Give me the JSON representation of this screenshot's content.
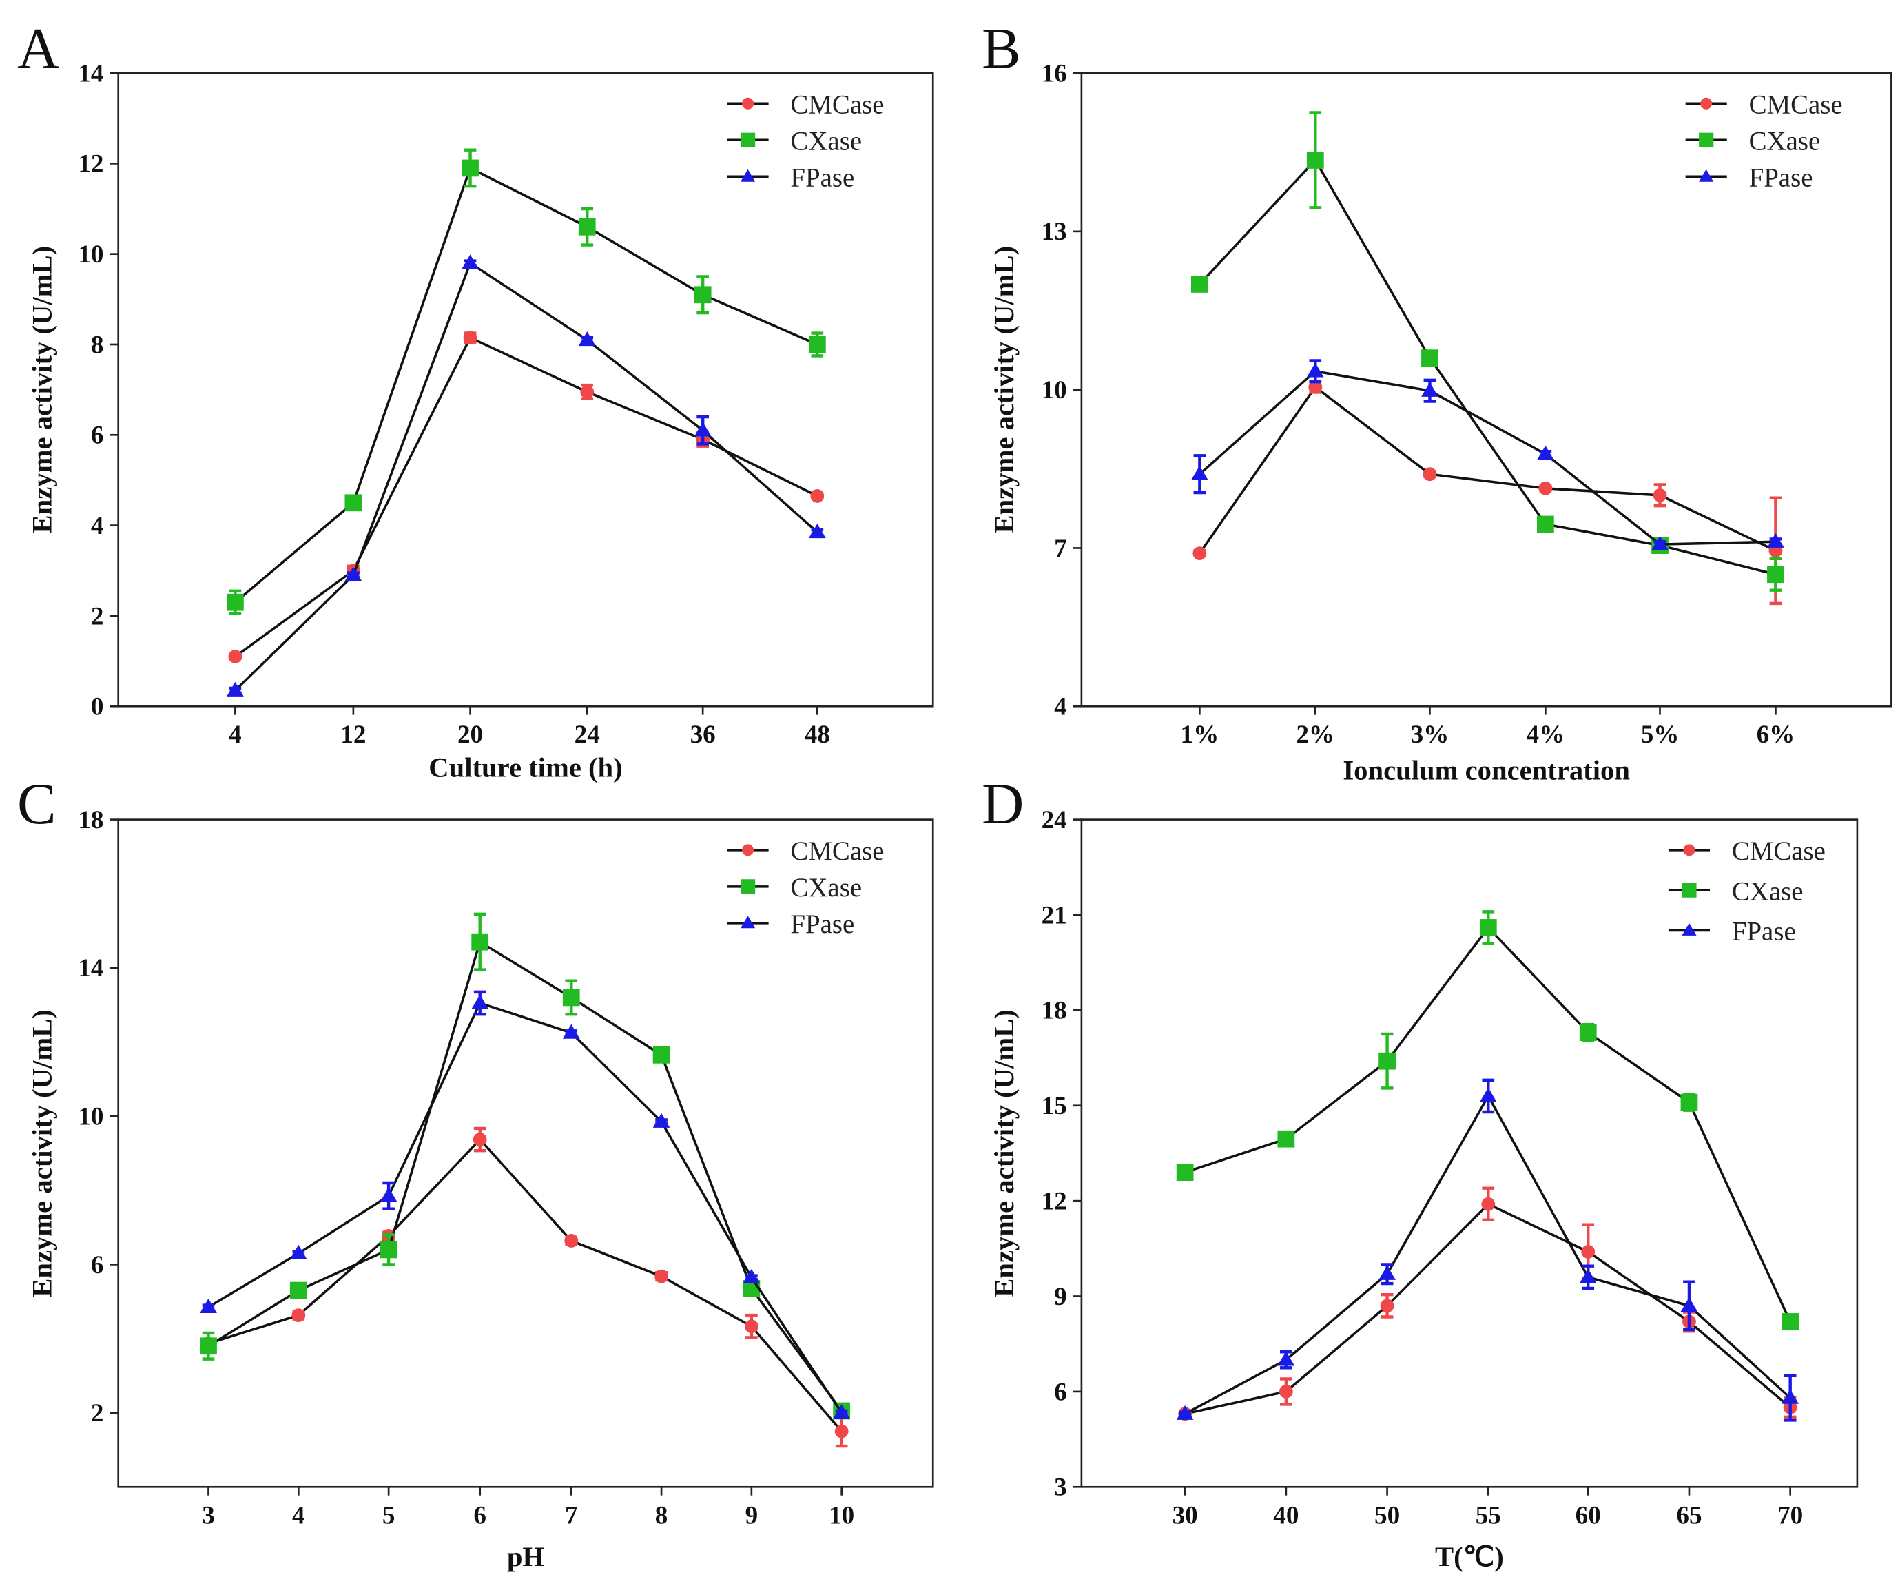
{
  "series_colors": {
    "CMCase": "#f04848",
    "CXase": "#22bb22",
    "FPase": "#1a1ae6"
  },
  "chart_data": [
    {
      "type": "line",
      "panel_label": "A",
      "xlabel": "Culture time (h)",
      "ylabel": "Enzyme activity (U/mL)",
      "categories": [
        "4",
        "12",
        "20",
        "24",
        "36",
        "48"
      ],
      "ylim": [
        0,
        14
      ],
      "yticks": [
        0,
        2,
        4,
        6,
        8,
        10,
        12,
        14
      ],
      "legend": "top-right",
      "series": [
        {
          "name": "CMCase",
          "marker": "circle",
          "values": [
            1.1,
            3.0,
            8.15,
            6.95,
            5.9,
            4.65
          ],
          "errors": [
            0.05,
            0.1,
            0.1,
            0.15,
            0.15,
            0.05
          ]
        },
        {
          "name": "CXase",
          "marker": "square",
          "values": [
            2.3,
            4.5,
            11.9,
            10.6,
            9.1,
            8.0
          ],
          "errors": [
            0.25,
            0.1,
            0.4,
            0.4,
            0.4,
            0.25
          ]
        },
        {
          "name": "FPase",
          "marker": "triangle",
          "values": [
            0.35,
            2.9,
            9.8,
            8.1,
            6.1,
            3.85
          ],
          "errors": [
            0.05,
            0.05,
            0.05,
            0.05,
            0.3,
            0.05
          ]
        }
      ]
    },
    {
      "type": "line",
      "panel_label": "B",
      "xlabel": "Ionculum concentration",
      "ylabel": "Enzyme activity (U/mL)",
      "categories": [
        "1%",
        "2%",
        "3%",
        "4%",
        "5%",
        "6%"
      ],
      "ylim": [
        4,
        16
      ],
      "yticks": [
        4,
        7,
        10,
        13,
        16
      ],
      "legend": "top-right",
      "series": [
        {
          "name": "CMCase",
          "marker": "circle",
          "values": [
            6.9,
            10.05,
            8.4,
            8.13,
            8.0,
            6.95
          ],
          "errors": [
            0.05,
            0.1,
            0.05,
            0.05,
            0.2,
            1.0
          ]
        },
        {
          "name": "CXase",
          "marker": "square",
          "values": [
            12.0,
            14.35,
            10.6,
            7.45,
            7.05,
            6.5
          ],
          "errors": [
            0.1,
            0.9,
            0.1,
            0.05,
            0.1,
            0.3
          ]
        },
        {
          "name": "FPase",
          "marker": "triangle",
          "values": [
            8.4,
            10.35,
            9.98,
            8.78,
            7.07,
            7.12
          ],
          "errors": [
            0.35,
            0.2,
            0.2,
            0.05,
            0.05,
            0.05
          ]
        }
      ]
    },
    {
      "type": "line",
      "panel_label": "C",
      "xlabel": "pH",
      "ylabel": "Enzyme activity (U/mL)",
      "categories": [
        "3",
        "4",
        "5",
        "6",
        "7",
        "8",
        "9",
        "10"
      ],
      "ylim": [
        0,
        18
      ],
      "yticks": [
        2,
        6,
        10,
        14,
        18
      ],
      "legend": "top-right",
      "series": [
        {
          "name": "CMCase",
          "marker": "circle",
          "values": [
            3.87,
            4.63,
            6.77,
            9.37,
            6.64,
            5.68,
            4.33,
            1.5
          ],
          "errors": [
            0.05,
            0.1,
            0.1,
            0.3,
            0.1,
            0.1,
            0.3,
            0.4
          ]
        },
        {
          "name": "CXase",
          "marker": "square",
          "values": [
            3.8,
            5.3,
            6.4,
            14.7,
            13.2,
            11.65,
            5.35,
            2.05
          ],
          "errors": [
            0.35,
            0.1,
            0.4,
            0.75,
            0.45,
            0.1,
            0.1,
            0.1
          ]
        },
        {
          "name": "FPase",
          "marker": "triangle",
          "values": [
            4.85,
            6.3,
            7.85,
            13.05,
            12.25,
            9.85,
            5.65,
            2.0
          ],
          "errors": [
            0.05,
            0.05,
            0.35,
            0.3,
            0.05,
            0.05,
            0.05,
            0.05
          ]
        }
      ]
    },
    {
      "type": "line",
      "panel_label": "D",
      "xlabel": "T(℃)",
      "ylabel": "Enzyme activity (U/mL)",
      "categories": [
        "30",
        "40",
        "50",
        "55",
        "60",
        "65",
        "70"
      ],
      "ylim": [
        3,
        24
      ],
      "yticks": [
        3,
        6,
        9,
        12,
        15,
        18,
        21,
        24
      ],
      "legend": "top-right",
      "series": [
        {
          "name": "CMCase",
          "marker": "circle",
          "values": [
            5.3,
            6.0,
            8.7,
            11.9,
            10.4,
            8.2,
            5.5
          ],
          "errors": [
            0.05,
            0.4,
            0.35,
            0.5,
            0.85,
            0.3,
            0.3
          ]
        },
        {
          "name": "CXase",
          "marker": "square",
          "values": [
            12.9,
            13.95,
            16.4,
            20.6,
            17.3,
            15.1,
            8.2
          ],
          "errors": [
            0.05,
            0.05,
            0.85,
            0.5,
            0.25,
            0.25,
            0.05
          ]
        },
        {
          "name": "FPase",
          "marker": "triangle",
          "values": [
            5.3,
            7.0,
            9.7,
            15.3,
            9.6,
            8.7,
            5.8
          ],
          "errors": [
            0.05,
            0.25,
            0.3,
            0.5,
            0.35,
            0.75,
            0.7
          ]
        }
      ]
    }
  ]
}
